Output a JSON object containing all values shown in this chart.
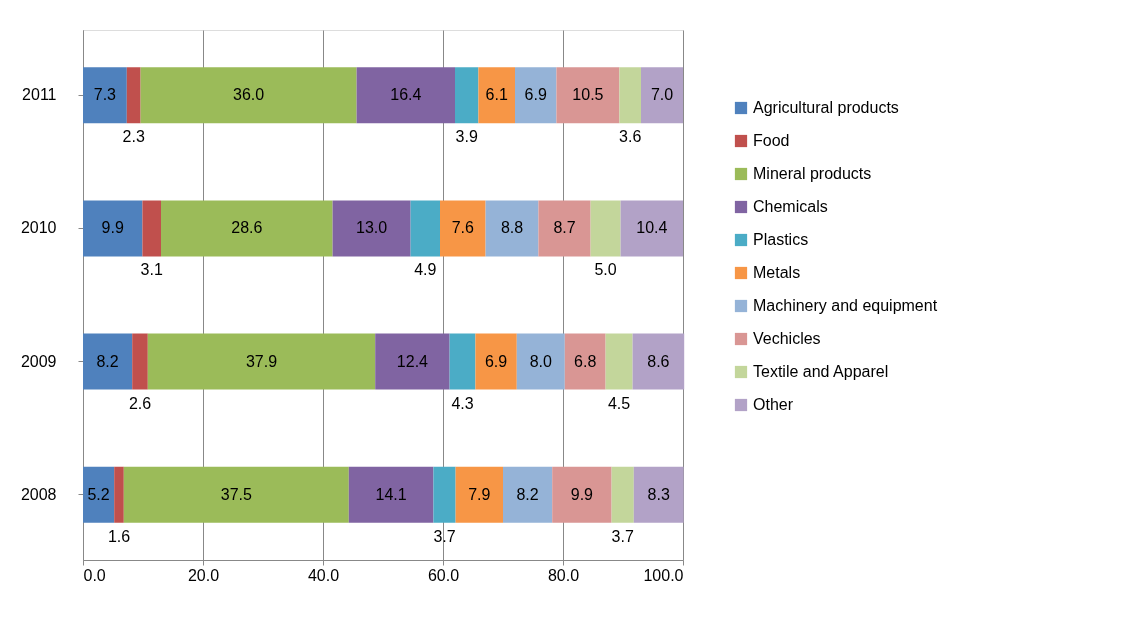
{
  "chart_data": {
    "type": "bar",
    "orientation": "horizontal",
    "stacked": true,
    "grid": "x",
    "legend": "right",
    "categories": [
      "2011",
      "2010",
      "2009",
      "2008"
    ],
    "xlim": [
      0,
      100
    ],
    "xticks": [
      {
        "value": 0,
        "label": "0.0"
      },
      {
        "value": 20,
        "label": "20.0"
      },
      {
        "value": 40,
        "label": "40.0"
      },
      {
        "value": 60,
        "label": "60.0"
      },
      {
        "value": 80,
        "label": "80.0"
      },
      {
        "value": 100,
        "label": "100.0"
      }
    ],
    "series": [
      {
        "name": "Agricultural products",
        "color": "#4f81bd",
        "values": [
          7.3,
          9.9,
          8.2,
          5.2
        ],
        "value_labels": [
          "7.3",
          "9.9",
          "8.2",
          "5.2"
        ]
      },
      {
        "name": "Food",
        "color": "#c0504d",
        "values": [
          2.3,
          3.1,
          2.6,
          1.6
        ],
        "value_labels": [
          "2.3",
          "3.1",
          "2.6",
          "1.6"
        ]
      },
      {
        "name": "Mineral products",
        "color": "#9bbb59",
        "values": [
          36.0,
          28.6,
          37.9,
          37.5
        ],
        "value_labels": [
          "36.0",
          "28.6",
          "37.9",
          "37.5"
        ]
      },
      {
        "name": "Chemicals",
        "color": "#8064a2",
        "values": [
          16.4,
          13.0,
          12.4,
          14.1
        ],
        "value_labels": [
          "16.4",
          "13.0",
          "12.4",
          "14.1"
        ]
      },
      {
        "name": "Plastics",
        "color": "#4bacc6",
        "values": [
          3.9,
          4.9,
          4.3,
          3.7
        ],
        "value_labels": [
          "3.9",
          "4.9",
          "4.3",
          "3.7"
        ]
      },
      {
        "name": "Metals",
        "color": "#f79646",
        "values": [
          6.1,
          7.6,
          6.9,
          7.9
        ],
        "value_labels": [
          "6.1",
          "7.6",
          "6.9",
          "7.9"
        ]
      },
      {
        "name": "Machinery and equipment",
        "color": "#95b3d7",
        "values": [
          6.9,
          8.8,
          8.0,
          8.2
        ],
        "value_labels": [
          "6.9",
          "8.8",
          "8.0",
          "8.2"
        ]
      },
      {
        "name": "Vechicles",
        "color": "#d99694",
        "values": [
          10.5,
          8.7,
          6.8,
          9.9
        ],
        "value_labels": [
          "10.5",
          "8.7",
          "6.8",
          "9.9"
        ]
      },
      {
        "name": "Textile and Apparel",
        "color": "#c3d69b",
        "values": [
          3.6,
          5.0,
          4.5,
          3.7
        ],
        "value_labels": [
          "3.6",
          "5.0",
          "4.5",
          "3.7"
        ]
      },
      {
        "name": "Other",
        "color": "#b2a2c7",
        "values": [
          7.0,
          10.4,
          8.6,
          8.3
        ],
        "value_labels": [
          "7.0",
          "10.4",
          "8.6",
          "8.3"
        ]
      }
    ]
  }
}
